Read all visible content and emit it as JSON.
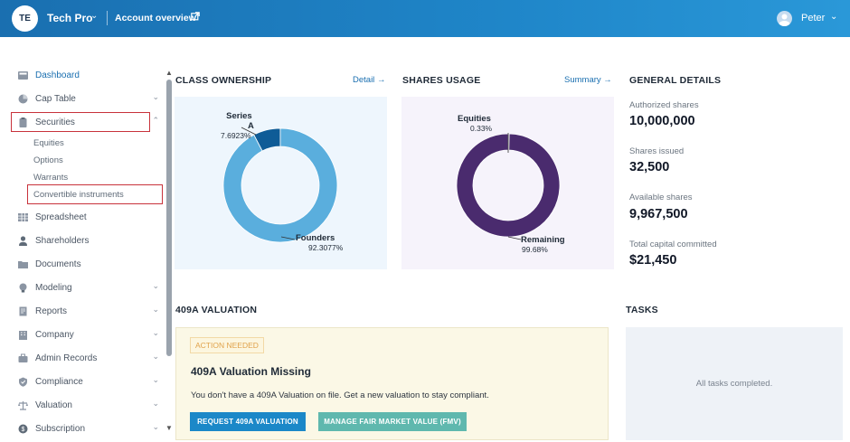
{
  "header": {
    "avatar_initials": "TE",
    "company_name": "Tech Pro",
    "account_overview": "Account overview",
    "user_name": "Peter"
  },
  "sidebar": {
    "items": [
      {
        "label": "Dashboard",
        "icon": "dashboard-icon",
        "active": true
      },
      {
        "label": "Cap Table",
        "icon": "pie-chart-icon",
        "chevron": true
      },
      {
        "label": "Securities",
        "icon": "clipboard-icon",
        "chevron": true,
        "expanded": true
      },
      {
        "label": "Spreadsheet",
        "icon": "grid-icon"
      },
      {
        "label": "Shareholders",
        "icon": "person-icon"
      },
      {
        "label": "Documents",
        "icon": "folder-icon"
      },
      {
        "label": "Modeling",
        "icon": "lightbulb-icon",
        "chevron": true
      },
      {
        "label": "Reports",
        "icon": "report-icon",
        "chevron": true
      },
      {
        "label": "Company",
        "icon": "building-icon",
        "chevron": true
      },
      {
        "label": "Admin Records",
        "icon": "briefcase-icon",
        "chevron": true
      },
      {
        "label": "Compliance",
        "icon": "shield-check-icon",
        "chevron": true
      },
      {
        "label": "Valuation",
        "icon": "scale-icon",
        "chevron": true
      },
      {
        "label": "Subscription",
        "icon": "dollar-icon",
        "chevron": true
      }
    ],
    "securities_sub": [
      "Equities",
      "Options",
      "Warrants",
      "Convertible instruments"
    ]
  },
  "class_ownership": {
    "title": "CLASS OWNERSHIP",
    "link": "Detail",
    "chart_data": {
      "type": "pie",
      "categories": [
        "Series A",
        "Founders"
      ],
      "values": [
        7.6923,
        92.3077
      ],
      "labels": [
        {
          "name_line1": "Series",
          "name_line2": "A",
          "pct": "7.6923%"
        },
        {
          "name": "Founders",
          "pct": "92.3077%"
        }
      ],
      "colors": [
        "#0f5c97",
        "#5aaedd"
      ],
      "donut": true
    }
  },
  "shares_usage": {
    "title": "SHARES USAGE",
    "link": "Summary",
    "chart_data": {
      "type": "pie",
      "categories": [
        "Equities",
        "Remaining"
      ],
      "values": [
        0.33,
        99.68
      ],
      "labels": [
        {
          "name": "Equities",
          "pct": "0.33%"
        },
        {
          "name": "Remaining",
          "pct": "99.68%"
        }
      ],
      "colors": [
        "#9d8fb8",
        "#4a2b6e"
      ],
      "donut": true
    }
  },
  "general_details": {
    "title": "GENERAL DETAILS",
    "rows": [
      {
        "label": "Authorized shares",
        "value": "10,000,000"
      },
      {
        "label": "Shares issued",
        "value": "32,500"
      },
      {
        "label": "Available shares",
        "value": "9,967,500"
      },
      {
        "label": "Total capital committed",
        "value": "$21,450"
      }
    ]
  },
  "valuation": {
    "title": "409A VALUATION",
    "badge": "ACTION NEEDED",
    "heading": "409A Valuation Missing",
    "description": "You don't have a 409A Valuation on file. Get a new valuation to stay compliant.",
    "primary_button": "REQUEST 409A VALUATION",
    "secondary_button": "MANAGE FAIR MARKET VALUE (FMV)"
  },
  "tasks": {
    "title": "TASKS",
    "empty_text": "All tasks completed."
  },
  "colors": {
    "brand": "#1a6fb0",
    "highlight_box": "#c8323b"
  }
}
